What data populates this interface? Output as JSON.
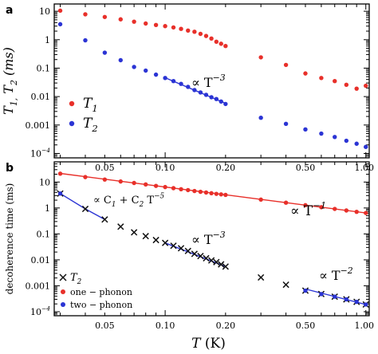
{
  "chart_data": [
    {
      "panel": "a",
      "type": "scatter",
      "ylabel": "T_1, T_2 (ms)",
      "yscale": "log",
      "xscale": "log",
      "ylim": [
        7e-05,
        18
      ],
      "xlim": [
        0.028,
        1.04
      ],
      "ytick_labels": [
        "10",
        "1",
        "0.1",
        "0.01",
        "0.001",
        "10^-4"
      ],
      "xtick_labels": [
        "0.05",
        "0.10",
        "0.20",
        "0.50",
        "1.00"
      ],
      "legend": {
        "position": "left",
        "entries": [
          {
            "label": "T_1",
            "color": "#e8302a"
          },
          {
            "label": "T_2",
            "color": "#2b34d4"
          }
        ]
      },
      "annotation": "∝ T^{-3}",
      "series": [
        {
          "name": "T_1",
          "color": "#e8302a",
          "x": [
            0.03,
            0.04,
            0.05,
            0.06,
            0.07,
            0.08,
            0.09,
            0.1,
            0.11,
            0.12,
            0.13,
            0.14,
            0.15,
            0.16,
            0.17,
            0.18,
            0.19,
            0.2,
            0.3,
            0.4,
            0.5,
            0.6,
            0.7,
            0.8,
            0.9,
            1.0
          ],
          "y": [
            10.5,
            7.8,
            6.3,
            5.2,
            4.3,
            3.7,
            3.3,
            3.0,
            2.7,
            2.4,
            2.1,
            1.9,
            1.6,
            1.35,
            1.1,
            0.85,
            0.72,
            0.6,
            0.24,
            0.13,
            0.065,
            0.045,
            0.035,
            0.026,
            0.019,
            0.024
          ]
        },
        {
          "name": "T_2",
          "color": "#2b34d4",
          "x": [
            0.03,
            0.04,
            0.05,
            0.06,
            0.07,
            0.08,
            0.09,
            0.1,
            0.11,
            0.12,
            0.13,
            0.14,
            0.15,
            0.16,
            0.17,
            0.18,
            0.19,
            0.2,
            0.3,
            0.4,
            0.5,
            0.6,
            0.7,
            0.8,
            0.9,
            1.0
          ],
          "y": [
            3.5,
            0.95,
            0.35,
            0.19,
            0.11,
            0.082,
            0.059,
            0.045,
            0.035,
            0.028,
            0.022,
            0.017,
            0.014,
            0.0115,
            0.0095,
            0.0082,
            0.0067,
            0.0055,
            0.0018,
            0.0011,
            0.0007,
            0.0005,
            0.00038,
            0.00028,
            0.00022,
            0.00017
          ]
        }
      ],
      "fit_lines": [
        {
          "label": "∝ T^{-3}",
          "color": "#2b34d4",
          "x": [
            0.1,
            0.2
          ],
          "y": [
            0.046,
            0.0058
          ]
        }
      ]
    },
    {
      "panel": "b",
      "type": "scatter",
      "ylabel": "decoherence time (ms)",
      "xlabel": "T (K)",
      "yscale": "log",
      "xscale": "log",
      "ylim": [
        7e-05,
        60
      ],
      "xlim": [
        0.028,
        1.04
      ],
      "ytick_labels": [
        "10",
        "1",
        "0.1",
        "0.01",
        "0.001",
        "10^-4"
      ],
      "xtick_labels": [
        "0.05",
        "0.10",
        "0.20",
        "0.50",
        "1.00"
      ],
      "legend": {
        "position": "bottom-left",
        "entries": [
          {
            "label": "T_2",
            "marker": "x",
            "color": "#111111"
          },
          {
            "label": "one − phonon",
            "marker": "dot",
            "color": "#e8302a"
          },
          {
            "label": "two − phonon",
            "marker": "dot",
            "color": "#2b34d4"
          }
        ]
      },
      "annotations": [
        "∝ T^{-1}",
        "∝ C_1 + C_2 T^{-5}",
        "∝ T^{-3}",
        "∝ T^{-2}"
      ],
      "series": [
        {
          "name": "T_2",
          "color": "#111111",
          "marker": "x",
          "x": [
            0.03,
            0.04,
            0.05,
            0.06,
            0.07,
            0.08,
            0.09,
            0.1,
            0.11,
            0.12,
            0.13,
            0.14,
            0.15,
            0.16,
            0.17,
            0.18,
            0.19,
            0.2,
            0.3,
            0.4,
            0.5,
            0.6,
            0.7,
            0.8,
            0.9,
            1.0
          ],
          "y": [
            3.6,
            0.92,
            0.36,
            0.19,
            0.115,
            0.082,
            0.058,
            0.045,
            0.035,
            0.028,
            0.022,
            0.017,
            0.014,
            0.0115,
            0.0095,
            0.0082,
            0.0067,
            0.0055,
            0.0021,
            0.0011,
            0.00065,
            0.00048,
            0.00038,
            0.0003,
            0.00024,
            0.00019
          ]
        },
        {
          "name": "one − phonon",
          "color": "#e8302a",
          "marker": "dot",
          "x": [
            0.03,
            0.04,
            0.05,
            0.06,
            0.07,
            0.08,
            0.09,
            0.1,
            0.11,
            0.12,
            0.13,
            0.14,
            0.15,
            0.16,
            0.17,
            0.18,
            0.19,
            0.2,
            0.3,
            0.4,
            0.5,
            0.6,
            0.7,
            0.8,
            0.9,
            1.0
          ],
          "y": [
            21,
            15.5,
            12.5,
            10.5,
            9.2,
            8.1,
            7.1,
            6.4,
            5.8,
            5.3,
            4.9,
            4.5,
            4.2,
            3.95,
            3.7,
            3.5,
            3.35,
            3.2,
            2.1,
            1.6,
            1.28,
            1.07,
            0.92,
            0.8,
            0.71,
            0.64
          ]
        },
        {
          "name": "two − phonon",
          "color": "#2b34d4",
          "marker": "dot",
          "x": [
            0.03,
            0.5,
            0.6,
            0.7,
            0.8,
            0.9,
            1.0
          ],
          "y": [
            3.6,
            0.00065,
            0.00048,
            0.00038,
            0.0003,
            0.00024,
            0.00019
          ]
        }
      ],
      "fit_lines": [
        {
          "label": "∝ T^{-1}",
          "color": "#e8302a",
          "x": [
            0.03,
            1.0
          ],
          "y": [
            21.5,
            0.64
          ]
        },
        {
          "label": "∝ C_1 + C_2 T^{-5}",
          "color": "#2b34d4",
          "x": [
            0.03,
            0.04,
            0.05
          ],
          "y": [
            3.6,
            0.92,
            0.36
          ]
        },
        {
          "label": "∝ T^{-3}",
          "color": "#2b34d4",
          "x": [
            0.1,
            0.2
          ],
          "y": [
            0.045,
            0.0055
          ]
        },
        {
          "label": "∝ T^{-2}",
          "color": "#2b34d4",
          "x": [
            0.5,
            1.0
          ],
          "y": [
            0.00075,
            0.00019
          ]
        }
      ]
    }
  ]
}
